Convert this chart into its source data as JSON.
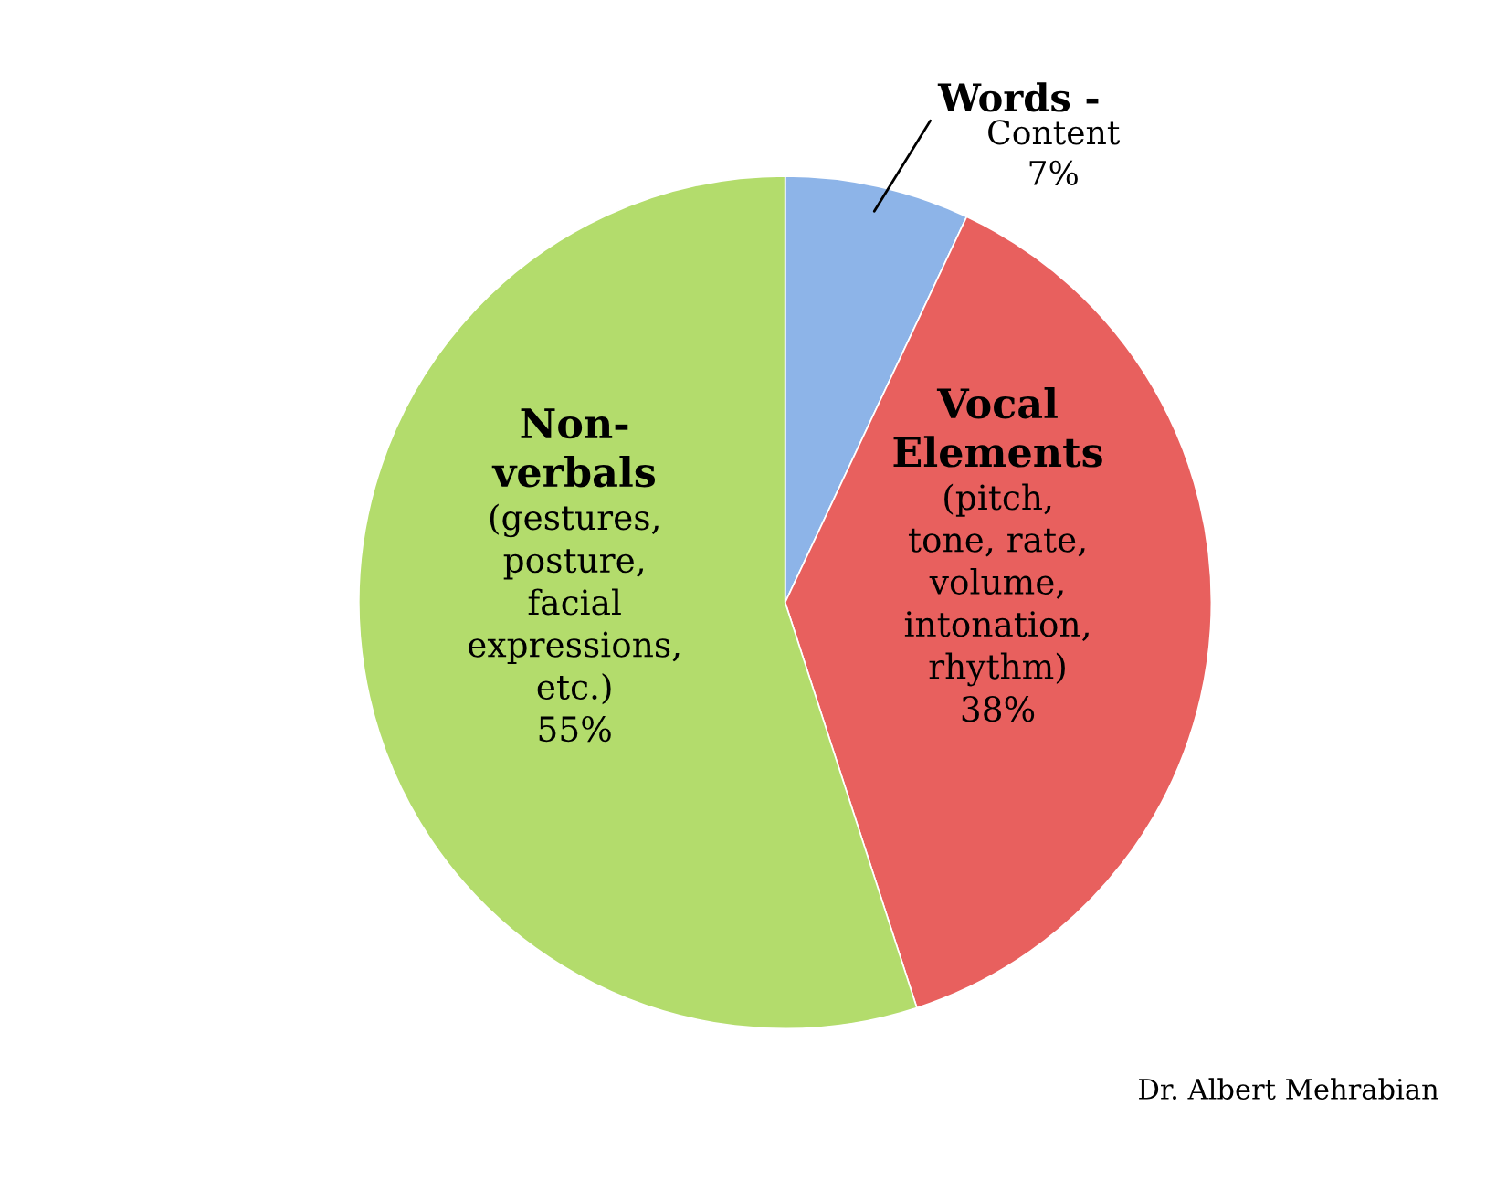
{
  "chart_data": {
    "type": "pie",
    "categories": [
      "Words -",
      "Vocal\nElements",
      "Non-\nverbals"
    ],
    "values": [
      7,
      38,
      55
    ],
    "value_labels": [
      "Content\n7%",
      "(pitch,\ntone, rate,\nvolume,\nintonation,\nrhythm)\n38%",
      "(gestures,\nposture,\nfacial\nexpressions,\netc.)\n55%"
    ],
    "colors": [
      "#8db4e8",
      "#e8605e",
      "#b3dc6c"
    ],
    "annotations": [
      "Dr. Albert Mehrabian"
    ],
    "legend": false
  }
}
